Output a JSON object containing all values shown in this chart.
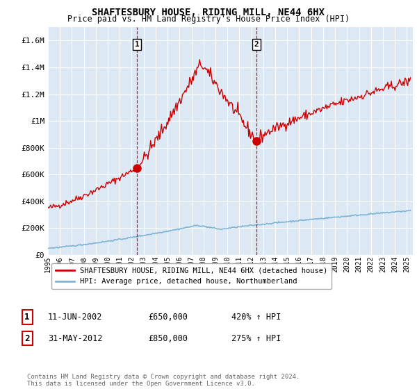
{
  "title": "SHAFTESBURY HOUSE, RIDING MILL, NE44 6HX",
  "subtitle": "Price paid vs. HM Land Registry's House Price Index (HPI)",
  "legend_line1": "SHAFTESBURY HOUSE, RIDING MILL, NE44 6HX (detached house)",
  "legend_line2": "HPI: Average price, detached house, Northumberland",
  "annotation1_label": "1",
  "annotation1_date": "11-JUN-2002",
  "annotation1_price": "£650,000",
  "annotation1_hpi": "420% ↑ HPI",
  "annotation1_year": 2002.44,
  "annotation1_value": 650000,
  "annotation2_label": "2",
  "annotation2_date": "31-MAY-2012",
  "annotation2_price": "£850,000",
  "annotation2_hpi": "275% ↑ HPI",
  "annotation2_year": 2012.41,
  "annotation2_value": 850000,
  "ylim": [
    0,
    1700000
  ],
  "yticks": [
    0,
    200000,
    400000,
    600000,
    800000,
    1000000,
    1200000,
    1400000,
    1600000
  ],
  "ytick_labels": [
    "£0",
    "£200K",
    "£400K",
    "£600K",
    "£800K",
    "£1M",
    "£1.2M",
    "£1.4M",
    "£1.6M"
  ],
  "xmin": 1995,
  "xmax": 2025.5,
  "background_color": "#dce9f5",
  "red_color": "#cc0000",
  "blue_color": "#7fb3d3",
  "footnote": "Contains HM Land Registry data © Crown copyright and database right 2024.\nThis data is licensed under the Open Government Licence v3.0.",
  "copyright_color": "#666666"
}
